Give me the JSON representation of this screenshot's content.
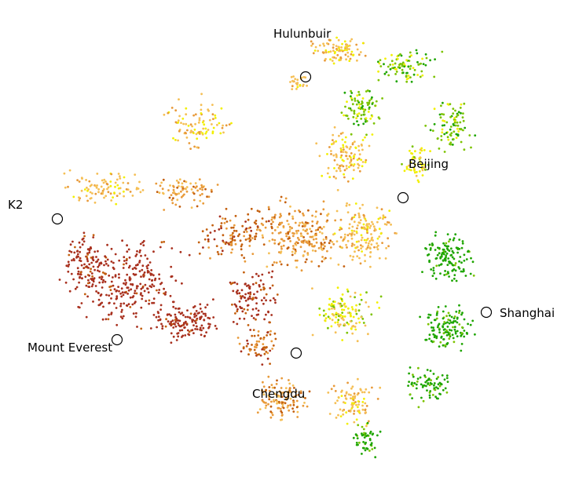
{
  "map": {
    "palette": {
      "low": "#1ea500",
      "green_yellow": "#7cc300",
      "yellow": "#f2f000",
      "light_orange": "#f5bf55",
      "orange": "#e89a3a",
      "dark_orange": "#c4600f",
      "dark_red": "#a8301e"
    },
    "marker_color": "#000000",
    "cities": [
      {
        "name": "Hulunbuir"
      },
      {
        "name": "Beijing"
      },
      {
        "name": "K2"
      },
      {
        "name": "Shanghai"
      },
      {
        "name": "Mount Everest"
      },
      {
        "name": "Chengdu"
      }
    ]
  }
}
